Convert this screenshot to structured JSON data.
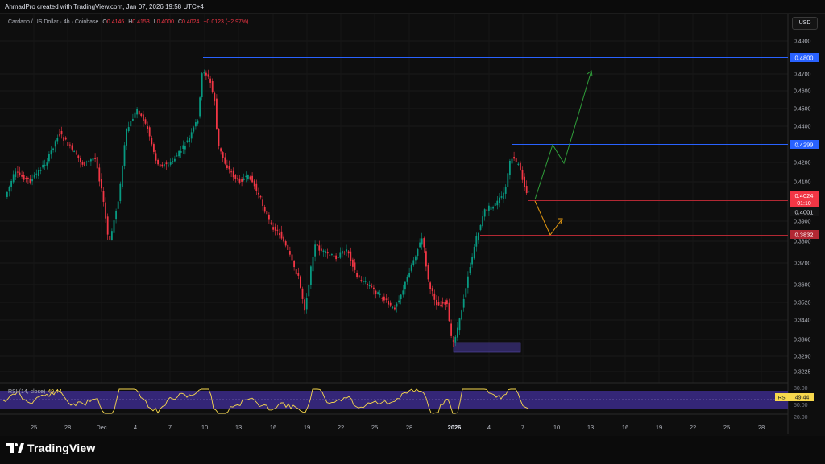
{
  "header": {
    "credit": "AhmadPro created with TradingView.com, Jan 07, 2026 19:58 UTC+4"
  },
  "symbol": {
    "name": "Cardano / US Dollar · 4h · Coinbase",
    "open_label": "O",
    "open": "0.4146",
    "high_label": "H",
    "high": "0.4153",
    "low_label": "L",
    "low": "0.4000",
    "close_label": "C",
    "close": "0.4024",
    "change": "−0.0123 (−2.97%)"
  },
  "currency_button": "USD",
  "price_axis": {
    "ticks": [
      "0.4900",
      "0.4700",
      "0.4600",
      "0.4500",
      "0.4400",
      "0.4200",
      "0.4100",
      "0.3900",
      "0.3800",
      "0.3700",
      "0.3600",
      "0.3520",
      "0.3440",
      "0.3360",
      "0.3290",
      "0.3225"
    ],
    "labels": {
      "resistance_top": "0.4800",
      "resistance_mid": "0.4299",
      "current_price": "0.4024",
      "countdown": "01:10",
      "support_near": "0.4001",
      "support_low": "0.3832"
    }
  },
  "time_axis": {
    "ticks": [
      "25",
      "28",
      "Dec",
      "4",
      "7",
      "10",
      "13",
      "16",
      "19",
      "22",
      "25",
      "28",
      "2026",
      "4",
      "7",
      "10",
      "13",
      "16",
      "19",
      "22",
      "25",
      "28"
    ]
  },
  "rsi": {
    "title": "RSI (14, close)",
    "value": "49.44",
    "badge_label": "RSI",
    "upper": "80.00",
    "mid": "50.00",
    "lower": "20.00"
  },
  "brand": {
    "logo_text": "TradingView"
  },
  "colors": {
    "up": "#089981",
    "down": "#f23645",
    "resistance": "#2962ff",
    "support": "#b22833",
    "bull_path": "#2f9e3a",
    "bear_path": "#e59a12",
    "rsi_band": "#7e57c2",
    "rsi_line": "#f7d84d"
  }
}
